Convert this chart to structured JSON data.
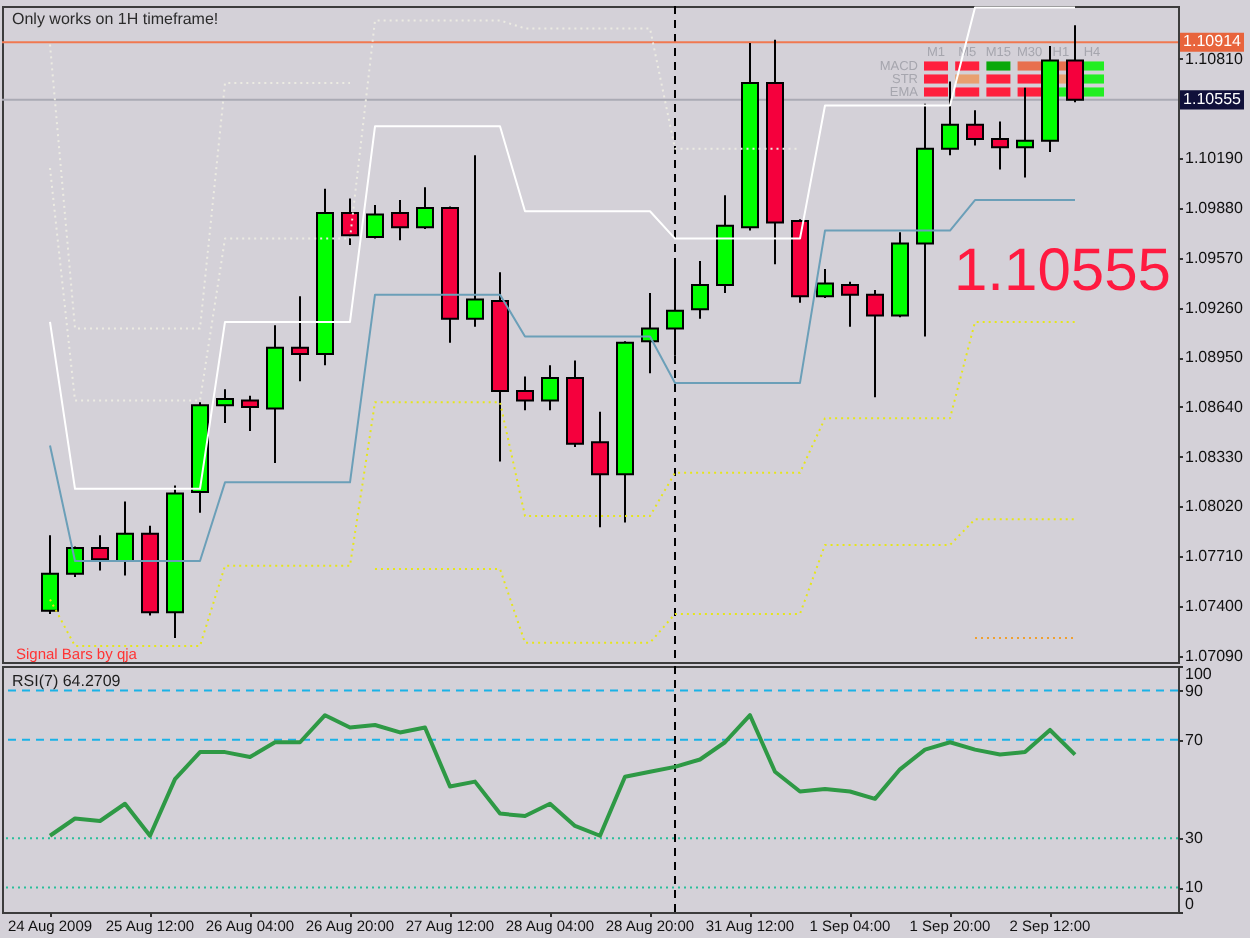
{
  "chart_data": [
    {
      "type": "candlestick",
      "categories": [
        null,
        null,
        null,
        null,
        null,
        null,
        null,
        null,
        null,
        null,
        null,
        null,
        null,
        null,
        null,
        null,
        null,
        null,
        null,
        null,
        null,
        null,
        null,
        null,
        null,
        null,
        null,
        null,
        null,
        null,
        null,
        null,
        null,
        null,
        null,
        null,
        null,
        null,
        null,
        null,
        null,
        null
      ],
      "ohlc": [
        [
          1.0737,
          1.0784,
          1.0735,
          1.076
        ],
        [
          1.076,
          1.0777,
          1.0758,
          1.0776
        ],
        [
          1.0776,
          1.0784,
          1.0762,
          1.0769
        ],
        [
          1.0768,
          1.0805,
          1.0759,
          1.0785
        ],
        [
          1.0785,
          1.079,
          1.0734,
          1.0736
        ],
        [
          1.0736,
          1.0815,
          1.072,
          1.081
        ],
        [
          1.0811,
          1.0867,
          1.0798,
          1.0865
        ],
        [
          1.0865,
          1.0875,
          1.0854,
          1.0869
        ],
        [
          1.0868,
          1.0871,
          1.0849,
          1.0864
        ],
        [
          1.0863,
          1.0915,
          1.0829,
          1.0901
        ],
        [
          1.0901,
          1.0933,
          1.088,
          1.0897
        ],
        [
          1.0897,
          1.1,
          1.089,
          1.0985
        ],
        [
          1.0985,
          1.0994,
          1.0965,
          1.0971
        ],
        [
          1.097,
          1.099,
          1.0969,
          1.0984
        ],
        [
          1.0985,
          1.0993,
          1.0968,
          1.0976
        ],
        [
          1.0976,
          1.1001,
          1.0975,
          1.0988
        ],
        [
          1.0988,
          1.0989,
          1.0904,
          1.0919
        ],
        [
          1.0919,
          1.1021,
          1.0914,
          1.0931
        ],
        [
          1.093,
          1.0948,
          1.083,
          1.0874
        ],
        [
          1.0874,
          1.0883,
          1.0862,
          1.0868
        ],
        [
          1.0868,
          1.089,
          1.0862,
          1.0882
        ],
        [
          1.0882,
          1.0893,
          1.0839,
          1.0841
        ],
        [
          1.0842,
          1.0861,
          1.0789,
          1.0822
        ],
        [
          1.0822,
          1.0905,
          1.0792,
          1.0904
        ],
        [
          1.0905,
          1.0935,
          1.0885,
          1.0913
        ],
        [
          1.0913,
          1.0956,
          1.0896,
          1.0924
        ],
        [
          1.0925,
          1.0955,
          1.0919,
          1.094
        ],
        [
          1.094,
          1.0996,
          1.0935,
          1.0977
        ],
        [
          1.0976,
          1.1091,
          1.0974,
          1.1066
        ],
        [
          1.1066,
          1.1093,
          1.0953,
          1.0979
        ],
        [
          1.098,
          1.0981,
          1.0929,
          1.0933
        ],
        [
          1.0933,
          1.095,
          1.0932,
          1.0941
        ],
        [
          1.094,
          1.0942,
          1.0914,
          1.0934
        ],
        [
          1.0934,
          1.0937,
          1.087,
          1.0921
        ],
        [
          1.0921,
          1.0973,
          1.092,
          1.0966
        ],
        [
          1.0966,
          1.1053,
          1.0908,
          1.1025
        ],
        [
          1.1025,
          1.1067,
          1.1021,
          1.104
        ],
        [
          1.104,
          1.1049,
          1.1027,
          1.1031
        ],
        [
          1.1031,
          1.1042,
          1.1012,
          1.1026
        ],
        [
          1.1026,
          1.1063,
          1.1007,
          1.103
        ],
        [
          1.103,
          1.1089,
          1.1023,
          1.108
        ],
        [
          1.108,
          1.1102,
          1.1054,
          1.10555
        ]
      ],
      "colors": [
        "#00ff00",
        "#00ff00",
        "#f5003d",
        "#00ff00",
        "#f5003d",
        "#00ff00",
        "#00ff00",
        "#00ff00",
        "#f5003d",
        "#00ff00",
        "#f5003d",
        "#00ff00",
        "#f5003d",
        "#00ff00",
        "#f5003d",
        "#00ff00",
        "#f5003d",
        "#00ff00",
        "#f5003d",
        "#f5003d",
        "#00ff00",
        "#f5003d",
        "#f5003d",
        "#00ff00",
        "#00ff00",
        "#00ff00",
        "#00ff00",
        "#00ff00",
        "#00ff00",
        "#f5003d",
        "#f5003d",
        "#00ff00",
        "#f5003d",
        "#f5003d",
        "#00ff00",
        "#00ff00",
        "#00ff00",
        "#f5003d",
        "#f5003d",
        "#00ff00",
        "#00ff00",
        "#f5003d"
      ],
      "series": [
        {
          "type": "line",
          "color": "#ecebe2",
          "line_style": "dotted",
          "values": [
            1.109,
            1.0913,
            1.0913,
            1.0913,
            1.0913,
            1.0913,
            1.0913,
            1.1066,
            1.1066,
            1.1066,
            1.1066,
            1.1066,
            1.1066,
            null,
            null,
            null,
            null,
            null,
            null,
            null,
            null,
            null,
            null,
            null,
            null,
            null,
            null,
            null,
            null,
            null,
            null,
            null,
            null,
            null,
            null,
            null,
            null,
            null,
            null,
            null,
            null,
            null
          ]
        },
        {
          "type": "line",
          "color": "#ecebe2",
          "line_style": "dotted",
          "values": [
            1.1013,
            1.0868,
            1.0868,
            1.0868,
            1.0868,
            1.0868,
            1.0868,
            1.0969,
            1.0969,
            1.0969,
            1.0969,
            1.0969,
            1.0969,
            1.1105,
            1.1105,
            1.1105,
            1.1105,
            1.1105,
            1.1105,
            1.11,
            1.11,
            1.11,
            1.11,
            1.11,
            1.11,
            1.1025,
            1.1025,
            1.1025,
            1.1025,
            1.1025,
            1.1025,
            null,
            null,
            null,
            null,
            null,
            null,
            null,
            null,
            null,
            null,
            null
          ]
        },
        {
          "type": "line",
          "color": "#ffffff",
          "line_style": "solid",
          "values": [
            1.0917,
            1.0813,
            1.0813,
            1.0813,
            1.0813,
            1.0813,
            1.0813,
            1.0917,
            1.0917,
            1.0917,
            1.0917,
            1.0917,
            1.0917,
            1.1039,
            1.1039,
            1.1039,
            1.1039,
            1.1039,
            1.1039,
            1.0986,
            1.0986,
            1.0986,
            1.0986,
            1.0986,
            1.0986,
            1.0969,
            1.0969,
            1.0969,
            1.0969,
            1.0969,
            1.0969,
            1.1052,
            1.1052,
            1.1052,
            1.1052,
            1.1052,
            1.1052,
            1.1113,
            1.1113,
            1.1113,
            1.1113,
            1.1113
          ]
        },
        {
          "type": "line",
          "color": "#6b9fb8",
          "line_style": "solid",
          "values": [
            1.084,
            1.0768,
            1.0768,
            1.0768,
            1.0768,
            1.0768,
            1.0768,
            1.0817,
            1.0817,
            1.0817,
            1.0817,
            1.0817,
            1.0817,
            1.0934,
            1.0934,
            1.0934,
            1.0934,
            1.0934,
            1.0934,
            1.0908,
            1.0908,
            1.0908,
            1.0908,
            1.0908,
            1.0908,
            1.0879,
            1.0879,
            1.0879,
            1.0879,
            1.0879,
            1.0879,
            1.0974,
            1.0974,
            1.0974,
            1.0974,
            1.0974,
            1.0974,
            1.0993,
            1.0993,
            1.0993,
            1.0993,
            1.0993
          ]
        },
        {
          "type": "line",
          "color": "#e6e619",
          "line_style": "dotted",
          "values": [
            1.0744,
            1.0715,
            1.0715,
            1.0715,
            1.0715,
            1.0715,
            1.0715,
            1.0765,
            1.0765,
            1.0765,
            1.0765,
            1.0765,
            1.0765,
            1.0867,
            1.0867,
            1.0867,
            1.0867,
            1.0867,
            1.0867,
            1.0796,
            1.0796,
            1.0796,
            1.0796,
            1.0796,
            1.0796,
            1.0823,
            1.0823,
            1.0823,
            1.0823,
            1.0823,
            1.0823,
            1.0857,
            1.0857,
            1.0857,
            1.0857,
            1.0857,
            1.0857,
            1.0917,
            1.0917,
            1.0917,
            1.0917,
            1.0917
          ]
        },
        {
          "type": "line",
          "color": "#e6e619",
          "line_style": "dotted",
          "values": [
            null,
            null,
            null,
            null,
            null,
            null,
            null,
            null,
            null,
            null,
            null,
            null,
            null,
            1.0763,
            1.0763,
            1.0763,
            1.0763,
            1.0763,
            1.0763,
            1.0717,
            1.0717,
            1.0717,
            1.0717,
            1.0717,
            1.0717,
            1.0735,
            1.0735,
            1.0735,
            1.0735,
            1.0735,
            1.0735,
            1.0778,
            1.0778,
            1.0778,
            1.0778,
            1.0778,
            1.0778,
            1.0794,
            1.0794,
            1.0794,
            1.0794,
            1.0794
          ]
        },
        {
          "type": "line",
          "color": "#f0a030",
          "line_style": "dotted",
          "values": [
            null,
            null,
            null,
            null,
            null,
            null,
            null,
            null,
            null,
            null,
            null,
            null,
            null,
            null,
            null,
            null,
            null,
            null,
            null,
            null,
            null,
            null,
            null,
            null,
            null,
            null,
            null,
            null,
            null,
            null,
            null,
            null,
            null,
            null,
            null,
            null,
            null,
            1.072,
            1.072,
            1.072,
            1.072,
            1.072
          ]
        }
      ],
      "ylim": [
        1.0705,
        1.1114
      ],
      "yticks": [
        {
          "value": 1.0709,
          "label": "1.07090"
        },
        {
          "value": 1.074,
          "label": "1.07400"
        },
        {
          "value": 1.0771,
          "label": "1.07710"
        },
        {
          "value": 1.0802,
          "label": "1.08020"
        },
        {
          "value": 1.0833,
          "label": "1.08330"
        },
        {
          "value": 1.0864,
          "label": "1.08640"
        },
        {
          "value": 1.0895,
          "label": "1.08950"
        },
        {
          "value": 1.0926,
          "label": "1.09260"
        },
        {
          "value": 1.0957,
          "label": "1.09570"
        },
        {
          "value": 1.0988,
          "label": "1.09880"
        },
        {
          "value": 1.1019,
          "label": "1.10190"
        },
        {
          "value": 1.1081,
          "label": "1.10810"
        }
      ],
      "tick_labels": "y",
      "ref_lines": [
        {
          "axis": "y",
          "value": 1.10914,
          "label": "1.10914",
          "color": "#f07850"
        },
        {
          "axis": "y",
          "value": 1.10555,
          "label": "1.10555",
          "color": "#aaaab4"
        }
      ],
      "annotations": [
        "Only works on 1H timeframe!",
        "Signal Bars by qja",
        "1.10555"
      ]
    },
    {
      "type": "line",
      "title": "RSI(7) 64.2709",
      "categories": [
        "24 Aug 2009",
        null,
        null,
        null,
        "25 Aug 12:00",
        null,
        null,
        null,
        "26 Aug 04:00",
        null,
        null,
        null,
        "26 Aug 20:00",
        null,
        null,
        null,
        "27 Aug 12:00",
        null,
        null,
        null,
        "28 Aug 04:00",
        null,
        null,
        null,
        "28 Aug 20:00",
        null,
        null,
        null,
        "31 Aug 12:00",
        null,
        null,
        null,
        "1 Sep 04:00",
        null,
        null,
        null,
        "1 Sep 20:00",
        null,
        null,
        null,
        "2 Sep 12:00",
        null
      ],
      "series": [
        {
          "color": "#2e9945",
          "values": [
            31,
            38,
            37,
            44,
            31,
            54,
            65,
            65,
            63,
            69,
            69,
            80,
            75,
            76,
            73,
            75,
            51,
            53,
            40,
            39,
            44,
            35,
            31,
            55,
            57,
            59,
            62,
            69,
            80,
            57,
            49,
            50,
            49,
            46,
            58,
            66,
            69,
            66,
            64,
            65,
            74,
            64
          ]
        }
      ],
      "ylim": [
        0,
        100
      ],
      "yticks": [
        0,
        10,
        30,
        70,
        90,
        100
      ],
      "ref_lines": [
        {
          "axis": "y",
          "value": 90,
          "color": "#1ab2e6",
          "line_style": "dashed"
        },
        {
          "axis": "y",
          "value": 70,
          "color": "#1ab2e6",
          "line_style": "dashed"
        },
        {
          "axis": "y",
          "value": 30,
          "color": "#2abf9a",
          "line_style": "dotted"
        },
        {
          "axis": "y",
          "value": 10,
          "color": "#2abf9a",
          "line_style": "dotted"
        }
      ]
    },
    {
      "type": "other",
      "categories": [
        "M1",
        "M5",
        "M15",
        "M30",
        "H1",
        "H4"
      ],
      "y_categories": [
        "MACD",
        "STR",
        "EMA"
      ],
      "colors": [
        [
          "#ff1f3d",
          "#ff1f3d",
          "#0aa80a",
          "#e8704e",
          "#e8704e",
          "#22ee22"
        ],
        [
          "#ff1f3d",
          "#e8a070",
          "#ff1f3d",
          "#ff1f3d",
          "#e8a070",
          "#22ee22"
        ],
        [
          "#ff1f3d",
          "#ff1f3d",
          "#ff1f3d",
          "#ff1f3d",
          "#22ee22",
          "#22ee22"
        ]
      ]
    }
  ]
}
